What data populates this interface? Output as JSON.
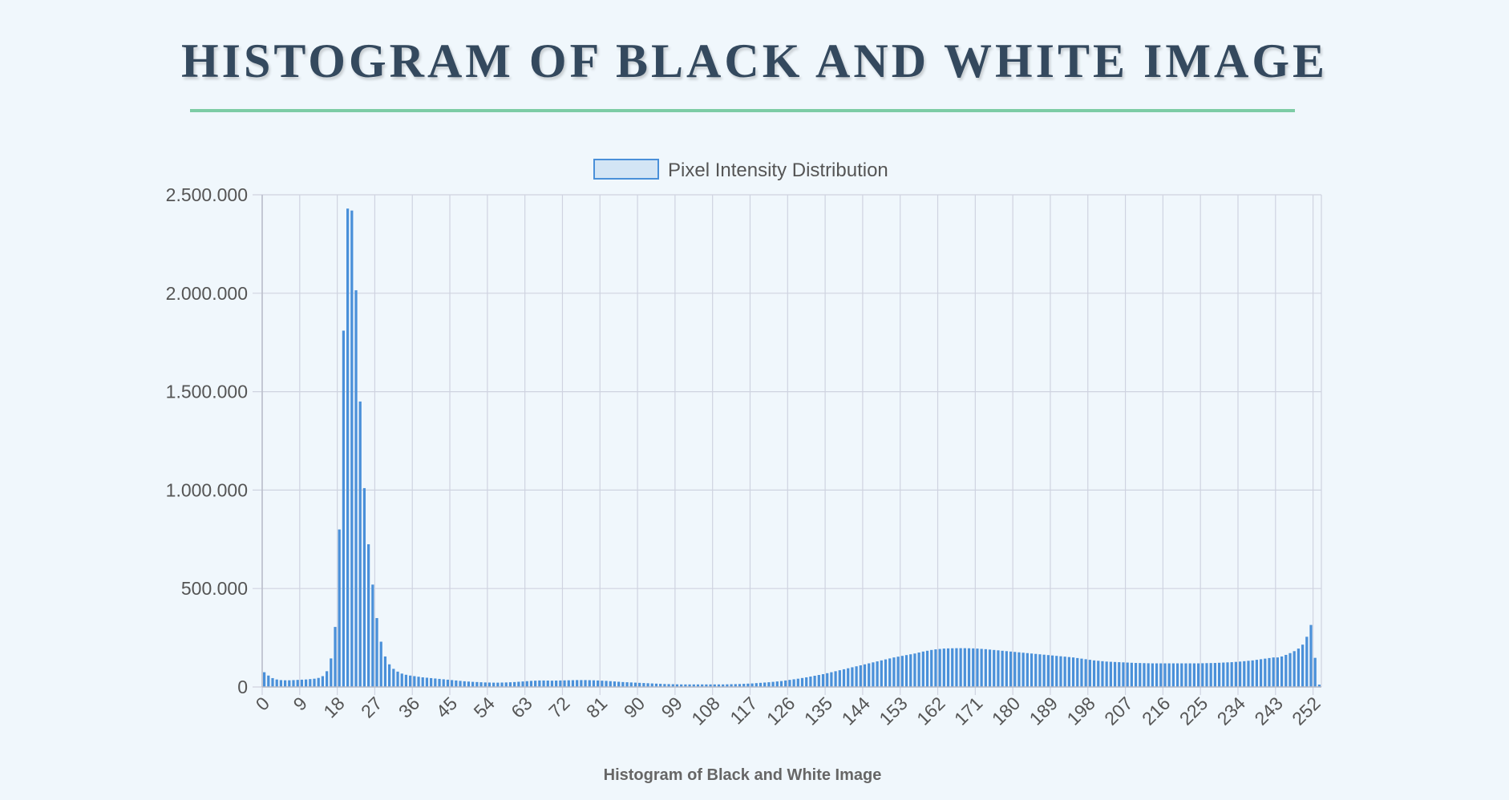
{
  "page": {
    "title": "HISTOGRAM OF BLACK AND WHITE IMAGE"
  },
  "colors": {
    "background": "#f0f7fc",
    "title": "#34495e",
    "underline": "#7dcca5",
    "bar": "#4a90d9",
    "legend_fill": "#d3e5f5",
    "grid": "#cfd3e0"
  },
  "chart_data": {
    "type": "bar",
    "title": "Histogram of Black and White Image",
    "xlabel": "",
    "ylabel": "",
    "legend": {
      "label": "Pixel Intensity Distribution",
      "position": "top-center"
    },
    "grid": true,
    "ylim": [
      0,
      2500000
    ],
    "y_ticks": [
      0,
      500000,
      1000000,
      1500000,
      2000000,
      2500000
    ],
    "y_tick_labels": [
      "0",
      "500.000",
      "1.000.000",
      "1.500.000",
      "2.000.000",
      "2.500.000"
    ],
    "x_tick_labels": [
      "0",
      "9",
      "18",
      "27",
      "36",
      "45",
      "54",
      "63",
      "72",
      "81",
      "90",
      "99",
      "108",
      "117",
      "126",
      "135",
      "144",
      "153",
      "162",
      "171",
      "180",
      "189",
      "198",
      "207",
      "216",
      "225",
      "234",
      "243",
      "252"
    ],
    "x_tick_step": 9,
    "categories_range": [
      0,
      255
    ],
    "series": [
      {
        "name": "Pixel Intensity Distribution",
        "values": [
          75000,
          58000,
          45000,
          38000,
          35000,
          34000,
          34000,
          35000,
          36000,
          37000,
          38000,
          40000,
          42000,
          46000,
          55000,
          80000,
          145000,
          305000,
          800000,
          1810000,
          2430000,
          2420000,
          2015000,
          1450000,
          1010000,
          725000,
          520000,
          350000,
          230000,
          155000,
          115000,
          92000,
          78000,
          68000,
          62000,
          58000,
          55000,
          52000,
          49000,
          47000,
          45000,
          43000,
          41000,
          39000,
          37000,
          35000,
          33000,
          31000,
          29000,
          27500,
          26000,
          25000,
          24000,
          23000,
          22500,
          22000,
          22000,
          22500,
          23000,
          24000,
          25000,
          26500,
          28000,
          29500,
          31000,
          32000,
          33000,
          33000,
          32500,
          32000,
          32500,
          33000,
          33500,
          34000,
          34500,
          35000,
          35000,
          35000,
          34500,
          34000,
          33000,
          32000,
          31000,
          29500,
          28000,
          26500,
          25000,
          24000,
          23000,
          22000,
          21000,
          20000,
          19000,
          18000,
          17000,
          16000,
          15000,
          14500,
          14000,
          13500,
          13000,
          13000,
          13000,
          13000,
          13000,
          13000,
          13000,
          13000,
          13000,
          13000,
          13000,
          13500,
          14000,
          14500,
          15000,
          16000,
          17000,
          18000,
          19500,
          21000,
          22500,
          24000,
          26000,
          28000,
          30000,
          33000,
          36000,
          39000,
          42000,
          45500,
          49000,
          53000,
          57000,
          61000,
          65000,
          70000,
          75000,
          80000,
          85000,
          90000,
          95000,
          100000,
          105000,
          110000,
          115000,
          120000,
          125000,
          130000,
          135000,
          140000,
          145000,
          150000,
          154000,
          158000,
          162000,
          166000,
          170000,
          175000,
          180000,
          184000,
          188000,
          191000,
          193000,
          195000,
          196000,
          196500,
          197000,
          197000,
          197000,
          196500,
          196000,
          195000,
          193500,
          192000,
          190000,
          188000,
          186000,
          184000,
          182000,
          180000,
          178000,
          176000,
          174000,
          172000,
          170000,
          168000,
          166000,
          164000,
          162000,
          160000,
          158000,
          156000,
          154000,
          152000,
          150000,
          147000,
          144000,
          141000,
          138000,
          135000,
          133000,
          131000,
          129000,
          128000,
          127000,
          126000,
          125000,
          124000,
          123000,
          122000,
          121500,
          121000,
          120500,
          120000,
          120000,
          120000,
          120000,
          120000,
          120000,
          120000,
          120000,
          120000,
          120000,
          120000,
          120000,
          120500,
          121000,
          121500,
          122000,
          123000,
          124000,
          125000,
          126000,
          127500,
          129000,
          131000,
          133000,
          135000,
          138000,
          141000,
          144000,
          147000,
          150000,
          150000,
          155000,
          163000,
          172000,
          182000,
          195000,
          215000,
          255000,
          315000,
          148000,
          12000
        ]
      }
    ]
  }
}
